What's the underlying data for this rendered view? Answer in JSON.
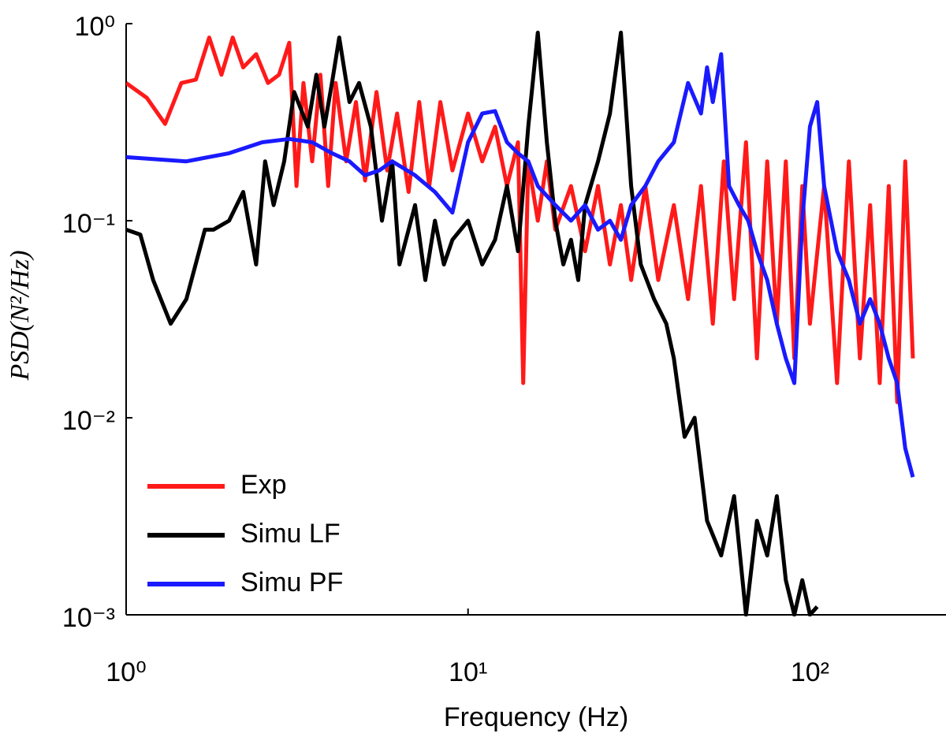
{
  "chart_data": {
    "type": "line",
    "xlabel": "Frequency (Hz)",
    "ylabel": "PSD(N²/Hz)",
    "xscale": "log",
    "yscale": "log",
    "xlim": [
      1,
      250
    ],
    "ylim": [
      0.001,
      1
    ],
    "xticks": [
      {
        "value": 1,
        "label": "10⁰"
      },
      {
        "value": 10,
        "label": "10¹"
      },
      {
        "value": 100,
        "label": "10²"
      }
    ],
    "yticks": [
      {
        "value": 0.001,
        "label": "10⁻³"
      },
      {
        "value": 0.01,
        "label": "10⁻²"
      },
      {
        "value": 0.1,
        "label": "10⁻¹"
      },
      {
        "value": 1,
        "label": "10⁰"
      }
    ],
    "grid": false,
    "legend": "lower left",
    "series": [
      {
        "name": "Exp",
        "color": "#ff1a1a",
        "x": [
          1,
          1.15,
          1.3,
          1.45,
          1.6,
          1.75,
          1.9,
          2.05,
          2.2,
          2.4,
          2.6,
          2.8,
          3.0,
          3.15,
          3.3,
          3.5,
          3.7,
          3.9,
          4.1,
          4.4,
          4.7,
          5.0,
          5.4,
          5.8,
          6.2,
          6.7,
          7.2,
          7.7,
          8.3,
          9,
          10,
          11,
          12,
          13,
          14,
          14.5,
          15,
          16,
          17,
          18,
          20,
          22,
          24,
          26,
          28,
          30,
          33,
          36,
          40,
          44,
          48,
          52,
          56,
          60,
          65,
          70,
          75,
          80,
          85,
          90,
          95,
          100,
          110,
          120,
          130,
          140,
          150,
          160,
          170,
          180,
          190,
          200
        ],
        "values": [
          0.5,
          0.42,
          0.31,
          0.5,
          0.52,
          0.85,
          0.55,
          0.85,
          0.6,
          0.7,
          0.5,
          0.55,
          0.8,
          0.15,
          0.5,
          0.2,
          0.55,
          0.15,
          0.5,
          0.2,
          0.4,
          0.16,
          0.45,
          0.18,
          0.35,
          0.14,
          0.4,
          0.15,
          0.4,
          0.18,
          0.35,
          0.2,
          0.3,
          0.15,
          0.25,
          0.015,
          0.2,
          0.1,
          0.2,
          0.09,
          0.15,
          0.07,
          0.15,
          0.06,
          0.12,
          0.05,
          0.15,
          0.05,
          0.12,
          0.04,
          0.15,
          0.03,
          0.2,
          0.04,
          0.25,
          0.02,
          0.2,
          0.03,
          0.2,
          0.02,
          0.15,
          0.03,
          0.15,
          0.015,
          0.2,
          0.02,
          0.12,
          0.015,
          0.15,
          0.012,
          0.2,
          0.02
        ]
      },
      {
        "name": "Simu LF",
        "color": "#000000",
        "x": [
          1,
          1.1,
          1.2,
          1.35,
          1.5,
          1.7,
          1.8,
          2.0,
          2.2,
          2.4,
          2.55,
          2.7,
          2.9,
          3.1,
          3.4,
          3.6,
          3.8,
          4.0,
          4.2,
          4.5,
          4.8,
          5.2,
          5.6,
          6.0,
          6.3,
          7,
          7.5,
          8,
          8.5,
          9,
          10,
          11,
          12,
          13,
          14,
          15,
          16,
          17,
          18,
          19,
          20,
          21,
          22,
          24,
          26,
          28,
          30,
          32,
          35,
          38,
          40,
          43,
          46,
          50,
          55,
          60,
          65,
          70,
          75,
          80,
          85,
          90,
          95,
          100,
          105
        ],
        "values": [
          0.09,
          0.085,
          0.05,
          0.03,
          0.04,
          0.09,
          0.09,
          0.1,
          0.14,
          0.06,
          0.2,
          0.12,
          0.2,
          0.45,
          0.3,
          0.55,
          0.3,
          0.5,
          0.85,
          0.4,
          0.5,
          0.3,
          0.1,
          0.2,
          0.06,
          0.12,
          0.05,
          0.1,
          0.06,
          0.08,
          0.1,
          0.06,
          0.08,
          0.15,
          0.07,
          0.3,
          0.9,
          0.25,
          0.1,
          0.06,
          0.08,
          0.05,
          0.12,
          0.2,
          0.35,
          0.9,
          0.15,
          0.06,
          0.04,
          0.03,
          0.02,
          0.008,
          0.01,
          0.003,
          0.002,
          0.004,
          0.001,
          0.003,
          0.002,
          0.004,
          0.0015,
          0.001,
          0.0015,
          0.001,
          0.0011
        ]
      },
      {
        "name": "Simu PF",
        "color": "#1a1aff",
        "x": [
          1,
          1.5,
          2,
          2.5,
          3,
          3.5,
          4,
          4.5,
          5,
          5.5,
          6,
          7,
          8,
          9,
          10,
          11,
          12,
          13,
          14,
          15,
          16,
          18,
          20,
          22,
          24,
          26,
          28,
          30,
          33,
          36,
          40,
          44,
          48,
          50,
          52,
          55,
          58,
          62,
          66,
          70,
          75,
          80,
          85,
          90,
          95,
          100,
          105,
          110,
          120,
          130,
          140,
          150,
          160,
          170,
          180,
          190,
          200
        ],
        "values": [
          0.21,
          0.2,
          0.22,
          0.25,
          0.26,
          0.25,
          0.22,
          0.2,
          0.17,
          0.18,
          0.2,
          0.17,
          0.14,
          0.11,
          0.25,
          0.35,
          0.36,
          0.25,
          0.22,
          0.2,
          0.15,
          0.12,
          0.1,
          0.12,
          0.09,
          0.1,
          0.08,
          0.12,
          0.15,
          0.2,
          0.25,
          0.5,
          0.35,
          0.6,
          0.4,
          0.7,
          0.15,
          0.12,
          0.1,
          0.07,
          0.05,
          0.03,
          0.02,
          0.015,
          0.1,
          0.3,
          0.4,
          0.15,
          0.07,
          0.05,
          0.03,
          0.04,
          0.03,
          0.02,
          0.015,
          0.007,
          0.005
        ]
      }
    ]
  }
}
